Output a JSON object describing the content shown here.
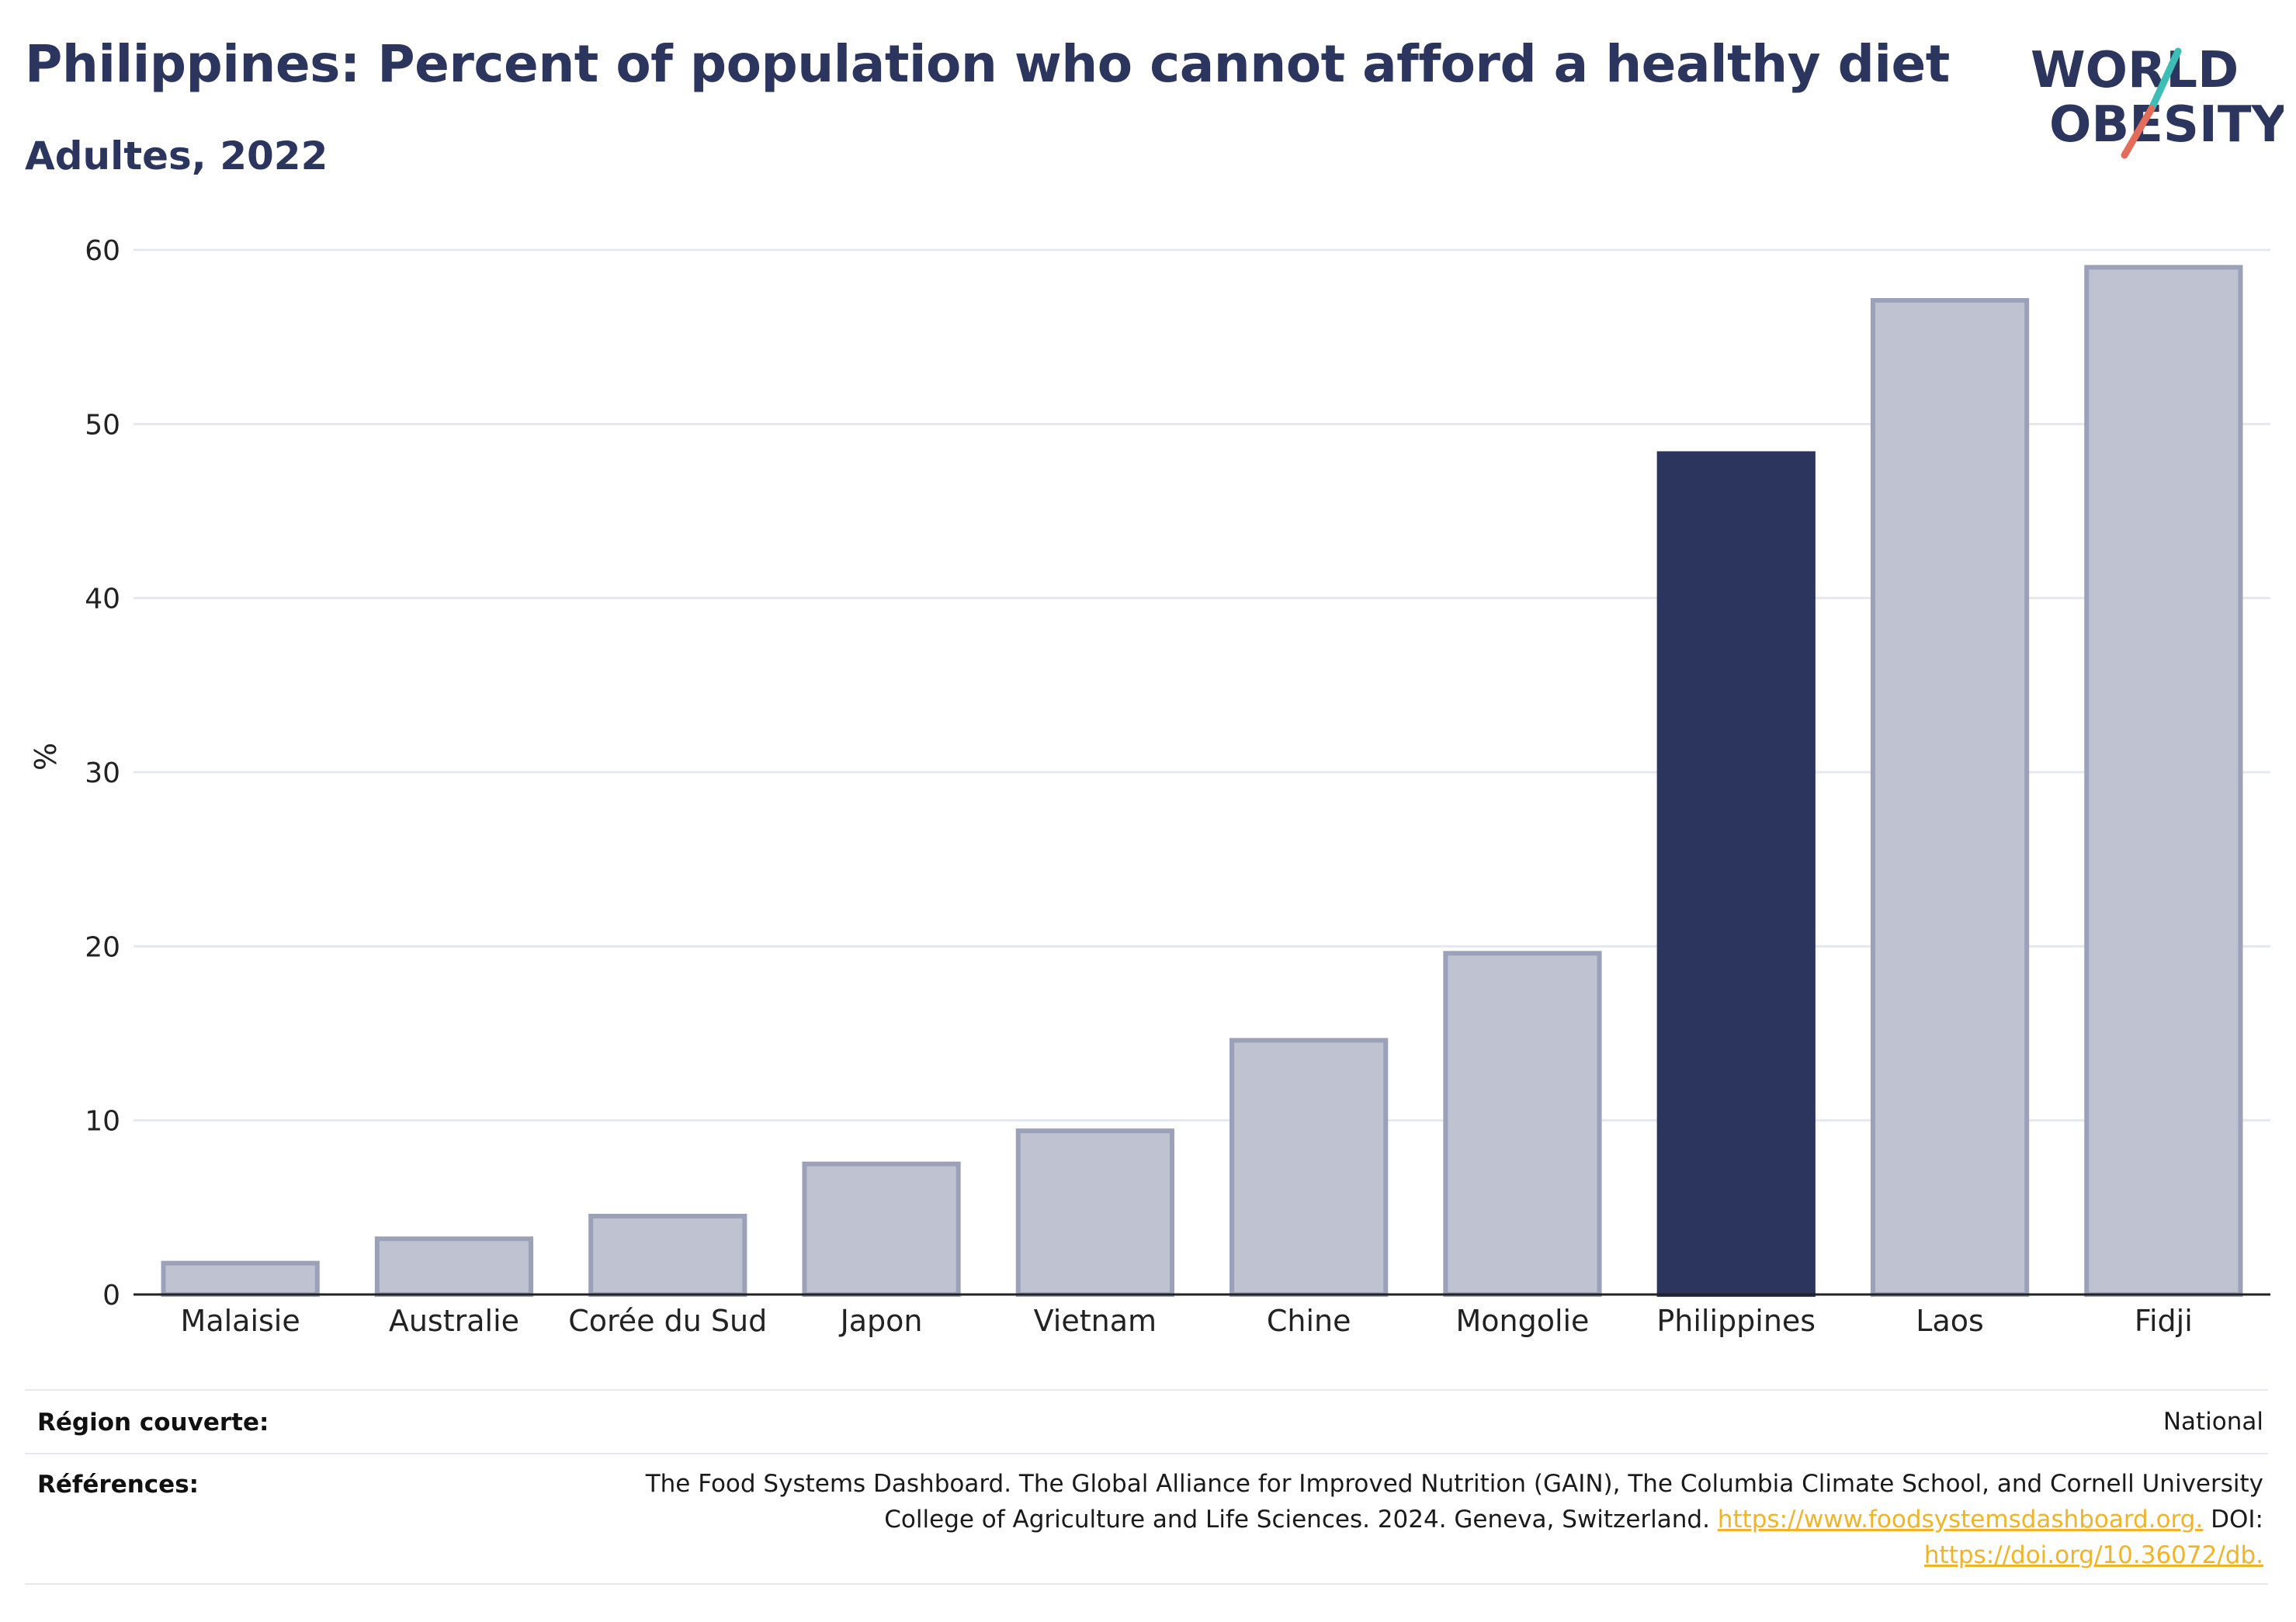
{
  "title": "Philippines: Percent of population who cannot afford a healthy diet",
  "subtitle": "Adultes, 2022",
  "logo": {
    "line1": "WORLD",
    "line2": "OBESITY"
  },
  "colors": {
    "highlight": "#2b355e",
    "bar_fill": "#bfc2d0",
    "bar_stroke": "#9ba1b8",
    "grid": "#e6e8ef",
    "axis": "#222222",
    "link": "#f0b429",
    "logo_teal": "#3dbdb5",
    "logo_coral": "#e36d5a"
  },
  "chart_data": {
    "type": "bar",
    "title": "Philippines: Percent of population who cannot afford a healthy diet",
    "subtitle": "Adultes, 2022",
    "xlabel": "",
    "ylabel": "%",
    "ylim": [
      0,
      60
    ],
    "yticks": [
      0,
      10,
      20,
      30,
      40,
      50,
      60
    ],
    "grid": true,
    "highlight": "Philippines",
    "categories": [
      "Malaisie",
      "Australie",
      "Corée du Sud",
      "Japon",
      "Vietnam",
      "Chine",
      "Mongolie",
      "Philippines",
      "Laos",
      "Fidji"
    ],
    "values": [
      1.8,
      3.2,
      4.5,
      7.5,
      9.4,
      14.6,
      19.6,
      48.3,
      57.1,
      59.0
    ]
  },
  "footer": {
    "region_label": "Région couverte:",
    "region_value": "National",
    "refs_label": "Références:",
    "refs_line1": "The Food Systems Dashboard. The Global Alliance for Improved Nutrition (GAIN), The Columbia Climate School, and Cornell University",
    "refs_line2_text": "College of Agriculture and Life Sciences. 2024. Geneva, Switzerland. ",
    "refs_link1": "https://www.foodsystemsdashboard.org.",
    "refs_doi": " DOI:",
    "refs_link2": "https://doi.org/10.36072/db."
  }
}
